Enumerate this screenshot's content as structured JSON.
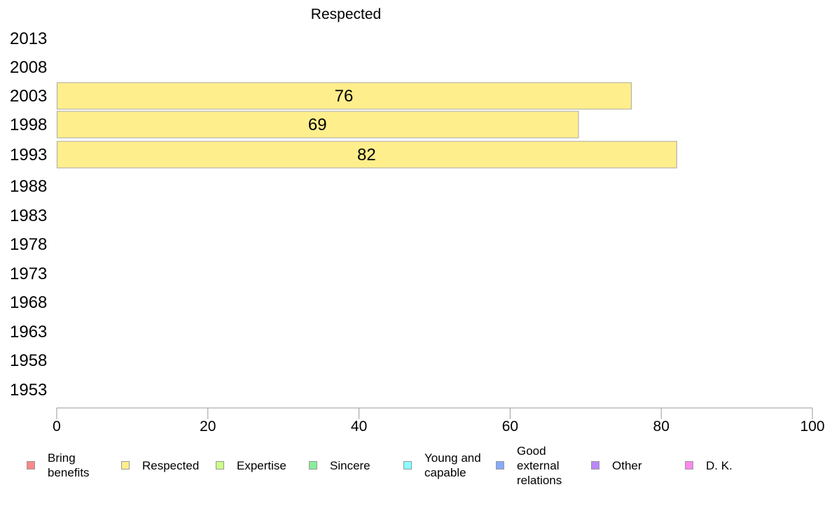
{
  "chart_data": {
    "type": "bar",
    "orientation": "horizontal",
    "title": "Respected",
    "categories": [
      "2013",
      "2008",
      "2003",
      "1998",
      "1993",
      "1988",
      "1983",
      "1978",
      "1973",
      "1968",
      "1963",
      "1958",
      "1953"
    ],
    "series": [
      {
        "name": "Respected",
        "color": "#ffee8c",
        "values": [
          null,
          null,
          76,
          69,
          82,
          null,
          null,
          null,
          null,
          null,
          null,
          null,
          null
        ]
      }
    ],
    "data_labels": [
      "",
      "",
      "76",
      "69",
      "82",
      "",
      "",
      "",
      "",
      "",
      "",
      "",
      ""
    ],
    "xlim": [
      0,
      100
    ],
    "xticks": [
      "0",
      "20",
      "40",
      "60",
      "80",
      "100"
    ],
    "xlabel": "",
    "ylabel": "",
    "grid": false,
    "legend_position": "bottom",
    "legend": [
      {
        "label": "Bring benefits",
        "color": "#ff8888"
      },
      {
        "label": "Respected",
        "color": "#ffee8c"
      },
      {
        "label": "Expertise",
        "color": "#ccff88"
      },
      {
        "label": "Sincere",
        "color": "#88ee99"
      },
      {
        "label": "Young and capable",
        "color": "#88ffff"
      },
      {
        "label": "Good external relations",
        "color": "#88aaff"
      },
      {
        "label": "Other",
        "color": "#bb88ff"
      },
      {
        "label": "D. K.",
        "color": "#ff88ee"
      }
    ]
  }
}
